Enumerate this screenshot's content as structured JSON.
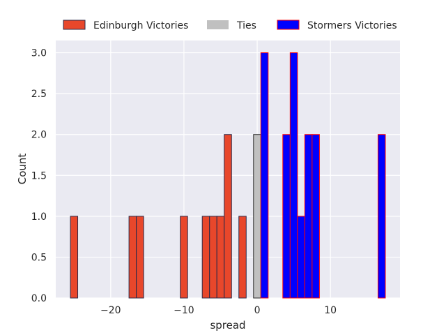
{
  "chart_data": {
    "type": "bar",
    "title": "",
    "xlabel": "spread",
    "ylabel": "Count",
    "xlim": [
      -27.5,
      19.5
    ],
    "ylim": [
      0,
      3.15
    ],
    "xticks": [
      -20,
      -10,
      0,
      10
    ],
    "xtick_labels": [
      "−20",
      "−10",
      "0",
      "10"
    ],
    "yticks": [
      0,
      0.5,
      1,
      1.5,
      2,
      2.5,
      3
    ],
    "ytick_labels": [
      "0.0",
      "0.5",
      "1.0",
      "1.5",
      "2.0",
      "2.5",
      "3.0"
    ],
    "grid": true,
    "legend_position": "top",
    "bin_width": 1,
    "series": [
      {
        "name": "Edinburgh Victories",
        "color": "#e8472b",
        "edge_color": "#2a2a4a",
        "bins": [
          {
            "x": -25,
            "count": 1
          },
          {
            "x": -17,
            "count": 1
          },
          {
            "x": -16,
            "count": 1
          },
          {
            "x": -10,
            "count": 1
          },
          {
            "x": -7,
            "count": 1
          },
          {
            "x": -6,
            "count": 1
          },
          {
            "x": -5,
            "count": 1
          },
          {
            "x": -4,
            "count": 2
          },
          {
            "x": -2,
            "count": 1
          }
        ]
      },
      {
        "name": "Ties",
        "color": "#c0c0c0",
        "edge_color": "#2a2a2a",
        "bins": [
          {
            "x": 0,
            "count": 2
          }
        ]
      },
      {
        "name": "Stormers Victories",
        "color": "#0000ff",
        "edge_color": "#ff0000",
        "bins": [
          {
            "x": 1,
            "count": 3
          },
          {
            "x": 4,
            "count": 2
          },
          {
            "x": 5,
            "count": 3
          },
          {
            "x": 6,
            "count": 1
          },
          {
            "x": 7,
            "count": 2
          },
          {
            "x": 8,
            "count": 2
          },
          {
            "x": 17,
            "count": 2
          }
        ]
      }
    ]
  }
}
